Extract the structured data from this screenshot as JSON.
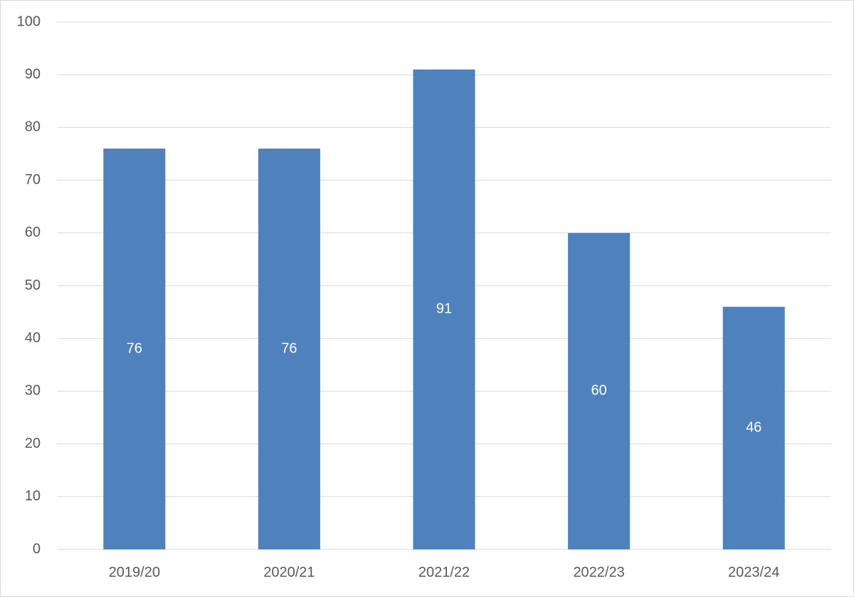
{
  "chart_data": {
    "type": "bar",
    "categories": [
      "2019/20",
      "2020/21",
      "2021/22",
      "2022/23",
      "2023/24"
    ],
    "values": [
      76,
      76,
      91,
      60,
      46
    ],
    "color": "#4f81bd",
    "ylim": [
      0,
      100
    ],
    "yticks": [
      0,
      10,
      20,
      30,
      40,
      50,
      60,
      70,
      80,
      90,
      100
    ],
    "grid": true,
    "data_labels": true
  }
}
